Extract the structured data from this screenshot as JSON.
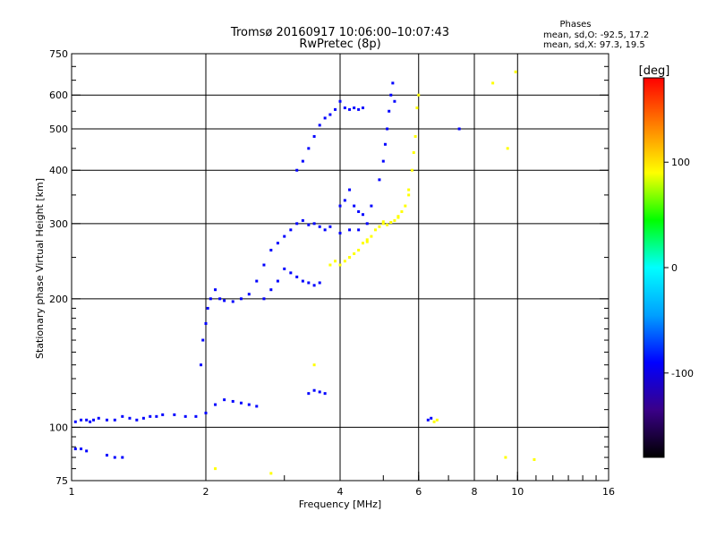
{
  "chart_data": {
    "type": "scatter",
    "title": "Tromsø 20160917 10:06:00–10:07:43",
    "subtitle": "RwPretec (8p)",
    "xlabel": "Frequency [MHz]",
    "ylabel": "Stationary phase Virtual Height [km]",
    "xscale": "log",
    "yscale": "log",
    "xlim": [
      1,
      16
    ],
    "ylim": [
      75,
      750
    ],
    "x_ticks": [
      1,
      2,
      4,
      6,
      8,
      10,
      16
    ],
    "y_ticks": [
      75,
      100,
      200,
      300,
      400,
      500,
      600,
      750
    ],
    "grid": true,
    "stats": {
      "heading": "Phases",
      "line1": "mean, sd,O: -92.5, 17.2",
      "line2": "mean, sd,X:  97.3, 19.5"
    },
    "colorbar": {
      "label": "[deg]",
      "range": [
        -180,
        180
      ],
      "ticks": [
        100,
        0,
        -100
      ],
      "palette": [
        "#000000",
        "#3a0088",
        "#0000ff",
        "#00a0ff",
        "#00ffff",
        "#00ff00",
        "#ffff00",
        "#ff8000",
        "#ff0000"
      ]
    },
    "series": [
      {
        "mode": "O",
        "color_phase": -100,
        "points": [
          [
            1.02,
            103
          ],
          [
            1.05,
            104
          ],
          [
            1.08,
            104
          ],
          [
            1.1,
            103
          ],
          [
            1.12,
            104
          ],
          [
            1.15,
            105
          ],
          [
            1.2,
            104
          ],
          [
            1.25,
            104
          ],
          [
            1.3,
            106
          ],
          [
            1.35,
            105
          ],
          [
            1.4,
            104
          ],
          [
            1.45,
            105
          ],
          [
            1.5,
            106
          ],
          [
            1.55,
            106
          ],
          [
            1.6,
            107
          ],
          [
            1.7,
            107
          ],
          [
            1.8,
            106
          ],
          [
            1.9,
            106
          ],
          [
            2.0,
            108
          ],
          [
            2.1,
            113
          ],
          [
            2.2,
            116
          ],
          [
            2.3,
            115
          ],
          [
            2.4,
            114
          ],
          [
            2.5,
            113
          ],
          [
            2.6,
            112
          ],
          [
            1.02,
            89
          ],
          [
            1.05,
            89
          ],
          [
            1.08,
            88
          ],
          [
            1.2,
            86
          ],
          [
            1.25,
            85
          ],
          [
            1.3,
            85
          ],
          [
            1.95,
            140
          ],
          [
            1.97,
            160
          ],
          [
            2.0,
            175
          ],
          [
            2.02,
            190
          ],
          [
            2.05,
            200
          ],
          [
            2.1,
            210
          ],
          [
            2.15,
            200
          ],
          [
            2.2,
            198
          ],
          [
            2.3,
            197
          ],
          [
            2.4,
            200
          ],
          [
            2.5,
            205
          ],
          [
            2.6,
            220
          ],
          [
            2.7,
            240
          ],
          [
            2.8,
            260
          ],
          [
            2.9,
            270
          ],
          [
            3.0,
            280
          ],
          [
            3.1,
            290
          ],
          [
            3.2,
            300
          ],
          [
            3.3,
            305
          ],
          [
            3.4,
            298
          ],
          [
            3.5,
            300
          ],
          [
            3.6,
            295
          ],
          [
            3.7,
            290
          ],
          [
            3.8,
            295
          ],
          [
            4.0,
            285
          ],
          [
            4.2,
            290
          ],
          [
            4.4,
            290
          ],
          [
            4.6,
            300
          ],
          [
            2.7,
            200
          ],
          [
            2.8,
            210
          ],
          [
            2.9,
            220
          ],
          [
            3.0,
            235
          ],
          [
            3.1,
            230
          ],
          [
            3.2,
            225
          ],
          [
            3.3,
            220
          ],
          [
            3.4,
            218
          ],
          [
            3.5,
            215
          ],
          [
            3.6,
            218
          ],
          [
            3.2,
            400
          ],
          [
            3.3,
            420
          ],
          [
            3.4,
            450
          ],
          [
            3.5,
            480
          ],
          [
            3.6,
            510
          ],
          [
            3.7,
            530
          ],
          [
            3.8,
            540
          ],
          [
            3.9,
            555
          ],
          [
            4.0,
            580
          ],
          [
            4.1,
            560
          ],
          [
            4.2,
            555
          ],
          [
            4.3,
            560
          ],
          [
            4.4,
            555
          ],
          [
            4.5,
            560
          ],
          [
            4.0,
            330
          ],
          [
            4.1,
            340
          ],
          [
            4.2,
            360
          ],
          [
            4.3,
            330
          ],
          [
            4.4,
            320
          ],
          [
            4.5,
            315
          ],
          [
            4.7,
            330
          ],
          [
            4.9,
            380
          ],
          [
            5.0,
            420
          ],
          [
            5.05,
            460
          ],
          [
            5.1,
            500
          ],
          [
            5.15,
            550
          ],
          [
            5.2,
            600
          ],
          [
            5.25,
            640
          ],
          [
            5.3,
            580
          ],
          [
            3.4,
            120
          ],
          [
            3.5,
            122
          ],
          [
            3.6,
            121
          ],
          [
            3.7,
            120
          ],
          [
            6.3,
            104
          ],
          [
            6.4,
            105
          ],
          [
            7.4,
            500
          ]
        ]
      },
      {
        "mode": "X",
        "color_phase": 100,
        "points": [
          [
            3.9,
            245
          ],
          [
            4.0,
            240
          ],
          [
            4.1,
            245
          ],
          [
            4.2,
            250
          ],
          [
            4.3,
            255
          ],
          [
            4.4,
            260
          ],
          [
            4.5,
            270
          ],
          [
            4.6,
            275
          ],
          [
            4.7,
            280
          ],
          [
            4.8,
            290
          ],
          [
            4.9,
            295
          ],
          [
            5.0,
            300
          ],
          [
            5.1,
            298
          ],
          [
            5.2,
            302
          ],
          [
            5.3,
            305
          ],
          [
            5.4,
            310
          ],
          [
            5.5,
            320
          ],
          [
            5.6,
            330
          ],
          [
            5.7,
            350
          ],
          [
            5.8,
            400
          ],
          [
            5.9,
            480
          ],
          [
            5.95,
            560
          ],
          [
            6.0,
            600
          ],
          [
            3.8,
            240
          ],
          [
            4.2,
            250
          ],
          [
            4.6,
            272
          ],
          [
            5.0,
            303
          ],
          [
            5.4,
            312
          ],
          [
            5.7,
            360
          ],
          [
            5.85,
            440
          ],
          [
            6.5,
            103
          ],
          [
            6.6,
            104
          ],
          [
            8.8,
            640
          ],
          [
            9.5,
            450
          ],
          [
            9.9,
            680
          ],
          [
            9.4,
            85
          ],
          [
            10.9,
            84
          ],
          [
            3.5,
            140
          ],
          [
            2.1,
            80
          ],
          [
            2.8,
            78
          ]
        ]
      }
    ]
  }
}
